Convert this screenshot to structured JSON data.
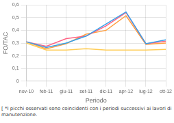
{
  "chart_data": {
    "type": "line",
    "x_label": "Periodo",
    "y_label": "FO/TAC",
    "categories": [
      "nov-10",
      "feb-11",
      "giu-11",
      "set-11",
      "dic-11",
      "apr-12",
      "lug-12",
      "ott-12"
    ],
    "series": [
      {
        "values": [
          0.31,
          0.265,
          0.3,
          0.355,
          0.45,
          0.545,
          0.295,
          0.325
        ]
      },
      {
        "values": [
          0.31,
          0.275,
          0.335,
          0.355,
          0.435,
          0.54,
          0.295,
          0.315
        ]
      },
      {
        "values": [
          0.31,
          0.255,
          0.295,
          0.37,
          0.4,
          0.515,
          0.29,
          0.3
        ]
      },
      {
        "values": [
          0.3,
          0.245,
          0.245,
          0.255,
          0.245,
          0.245,
          0.245,
          0.25
        ]
      }
    ],
    "ylim": [
      0,
      0.6
    ],
    "yticks": [
      0,
      {
        "value": 0.1,
        "label": "0,1"
      },
      {
        "value": 0.2,
        "label": "0,2"
      },
      {
        "value": 0.3,
        "label": "0,3"
      },
      {
        "value": 0.4,
        "label": "0,4"
      },
      {
        "value": 0.5,
        "label": "0,5"
      },
      {
        "value": 0.6,
        "label": "0,6"
      }
    ],
    "grid": true,
    "annotations": [
      "[ *I picchi osservati sono coincidenti con i periodi successivi ai lavori di manutenzione."
    ]
  }
}
